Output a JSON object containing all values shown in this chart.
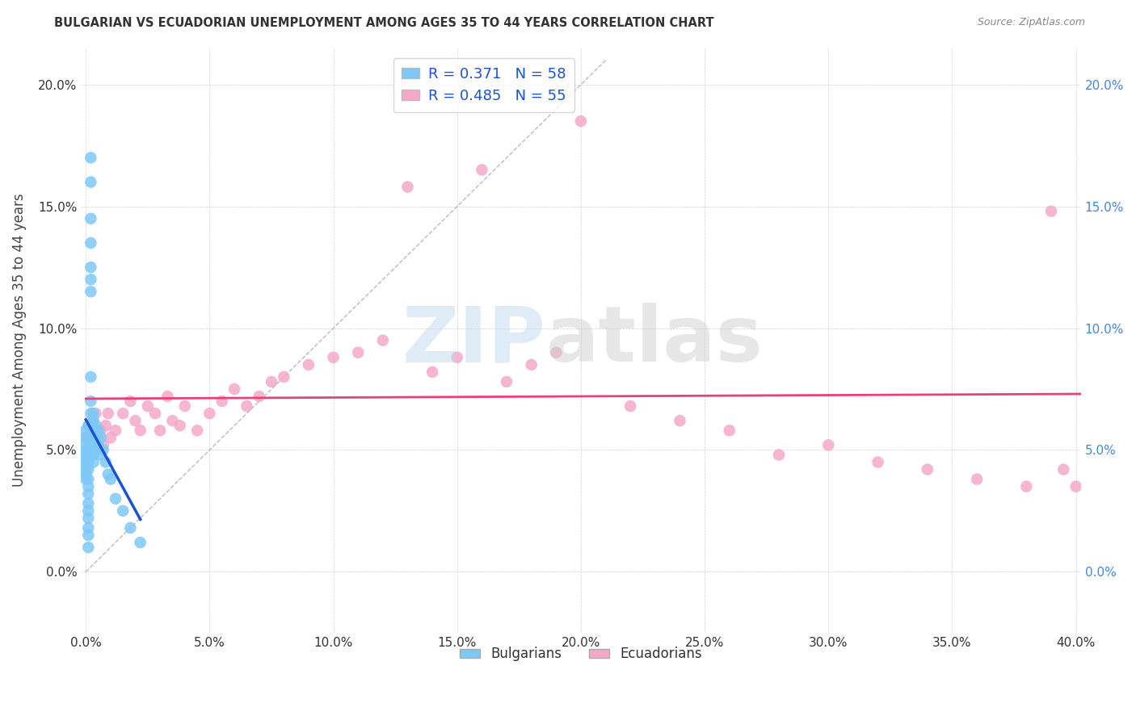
{
  "title": "BULGARIAN VS ECUADORIAN UNEMPLOYMENT AMONG AGES 35 TO 44 YEARS CORRELATION CHART",
  "source": "Source: ZipAtlas.com",
  "ylabel": "Unemployment Among Ages 35 to 44 years",
  "xlim": [
    -0.002,
    0.402
  ],
  "ylim": [
    -0.025,
    0.215
  ],
  "xticks": [
    0.0,
    0.05,
    0.1,
    0.15,
    0.2,
    0.25,
    0.3,
    0.35,
    0.4
  ],
  "yticks": [
    0.0,
    0.05,
    0.1,
    0.15,
    0.2
  ],
  "xtick_labels": [
    "0.0%",
    "5.0%",
    "10.0%",
    "15.0%",
    "20.0%",
    "25.0%",
    "30.0%",
    "35.0%",
    "40.0%"
  ],
  "ytick_labels": [
    "0.0%",
    "5.0%",
    "10.0%",
    "15.0%",
    "20.0%"
  ],
  "bg_color": "#ffffff",
  "bulgarian_color": "#7ec8f7",
  "ecuadorian_color": "#f5a8c8",
  "bulgarian_line_color": "#1a52d4",
  "ecuadorian_line_color": "#e8407a",
  "ref_line_color": "#aaaaaa",
  "R_bulgarian": 0.371,
  "N_bulgarian": 58,
  "R_ecuadorian": 0.485,
  "N_ecuadorian": 55,
  "right_tick_color": "#4488dd",
  "legend_labels": [
    "Bulgarians",
    "Ecuadorians"
  ],
  "bulgarian_x": [
    0.0,
    0.0,
    0.0,
    0.0,
    0.0,
    0.0,
    0.0,
    0.0,
    0.0,
    0.0,
    0.001,
    0.001,
    0.001,
    0.001,
    0.001,
    0.001,
    0.001,
    0.001,
    0.001,
    0.001,
    0.001,
    0.001,
    0.001,
    0.001,
    0.001,
    0.002,
    0.002,
    0.002,
    0.002,
    0.002,
    0.002,
    0.002,
    0.002,
    0.002,
    0.002,
    0.002,
    0.003,
    0.003,
    0.003,
    0.003,
    0.003,
    0.003,
    0.003,
    0.004,
    0.004,
    0.004,
    0.005,
    0.005,
    0.006,
    0.006,
    0.007,
    0.008,
    0.009,
    0.01,
    0.012,
    0.015,
    0.018,
    0.022
  ],
  "bulgarian_y": [
    0.05,
    0.048,
    0.052,
    0.046,
    0.044,
    0.055,
    0.058,
    0.042,
    0.04,
    0.038,
    0.06,
    0.055,
    0.05,
    0.048,
    0.045,
    0.042,
    0.038,
    0.035,
    0.032,
    0.028,
    0.025,
    0.022,
    0.018,
    0.015,
    0.01,
    0.17,
    0.16,
    0.145,
    0.135,
    0.125,
    0.12,
    0.115,
    0.08,
    0.07,
    0.065,
    0.06,
    0.065,
    0.062,
    0.058,
    0.055,
    0.052,
    0.048,
    0.045,
    0.06,
    0.055,
    0.05,
    0.058,
    0.052,
    0.055,
    0.048,
    0.05,
    0.045,
    0.04,
    0.038,
    0.03,
    0.025,
    0.018,
    0.012
  ],
  "ecuadorian_x": [
    0.0,
    0.001,
    0.002,
    0.003,
    0.004,
    0.005,
    0.006,
    0.007,
    0.008,
    0.009,
    0.01,
    0.012,
    0.015,
    0.018,
    0.02,
    0.022,
    0.025,
    0.028,
    0.03,
    0.033,
    0.035,
    0.038,
    0.04,
    0.045,
    0.05,
    0.055,
    0.06,
    0.065,
    0.07,
    0.075,
    0.08,
    0.09,
    0.1,
    0.11,
    0.12,
    0.13,
    0.14,
    0.15,
    0.16,
    0.17,
    0.18,
    0.19,
    0.2,
    0.22,
    0.24,
    0.26,
    0.28,
    0.3,
    0.32,
    0.34,
    0.36,
    0.38,
    0.39,
    0.395,
    0.4
  ],
  "ecuadorian_y": [
    0.055,
    0.06,
    0.058,
    0.062,
    0.065,
    0.055,
    0.058,
    0.052,
    0.06,
    0.065,
    0.055,
    0.058,
    0.065,
    0.07,
    0.062,
    0.058,
    0.068,
    0.065,
    0.058,
    0.072,
    0.062,
    0.06,
    0.068,
    0.058,
    0.065,
    0.07,
    0.075,
    0.068,
    0.072,
    0.078,
    0.08,
    0.085,
    0.088,
    0.09,
    0.095,
    0.158,
    0.082,
    0.088,
    0.165,
    0.078,
    0.085,
    0.09,
    0.185,
    0.068,
    0.062,
    0.058,
    0.048,
    0.052,
    0.045,
    0.042,
    0.038,
    0.035,
    0.148,
    0.042,
    0.035
  ]
}
